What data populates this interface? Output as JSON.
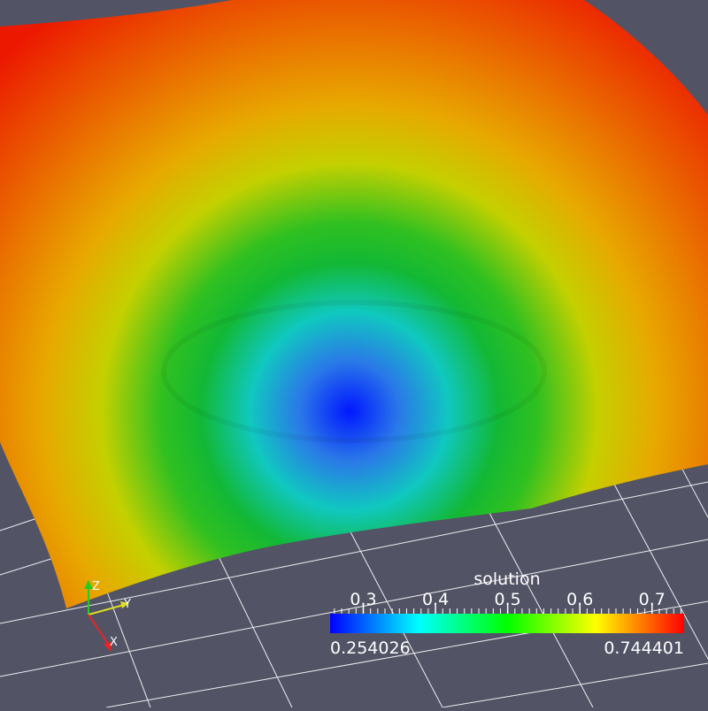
{
  "scene": {
    "background_color": "#525466",
    "grid_color": "#ffffff",
    "colormap": [
      "#0000ff",
      "#00ffff",
      "#00ff00",
      "#ffff00",
      "#ff0000"
    ]
  },
  "color_legend": {
    "title": "solution",
    "min_label": "0.254026",
    "max_label": "0.744401",
    "range": [
      0.254026,
      0.744401
    ],
    "ticks": [
      "0.3",
      "0.4",
      "0.5",
      "0.6",
      "0.7"
    ],
    "tick_values": [
      0.3,
      0.4,
      0.5,
      0.6,
      0.7
    ]
  },
  "axes_triad": {
    "z_label": "Z",
    "y_label": "Y",
    "x_label": "X",
    "z_color": "#22cc22",
    "y_color": "#dddd22",
    "x_color": "#ee2222"
  }
}
